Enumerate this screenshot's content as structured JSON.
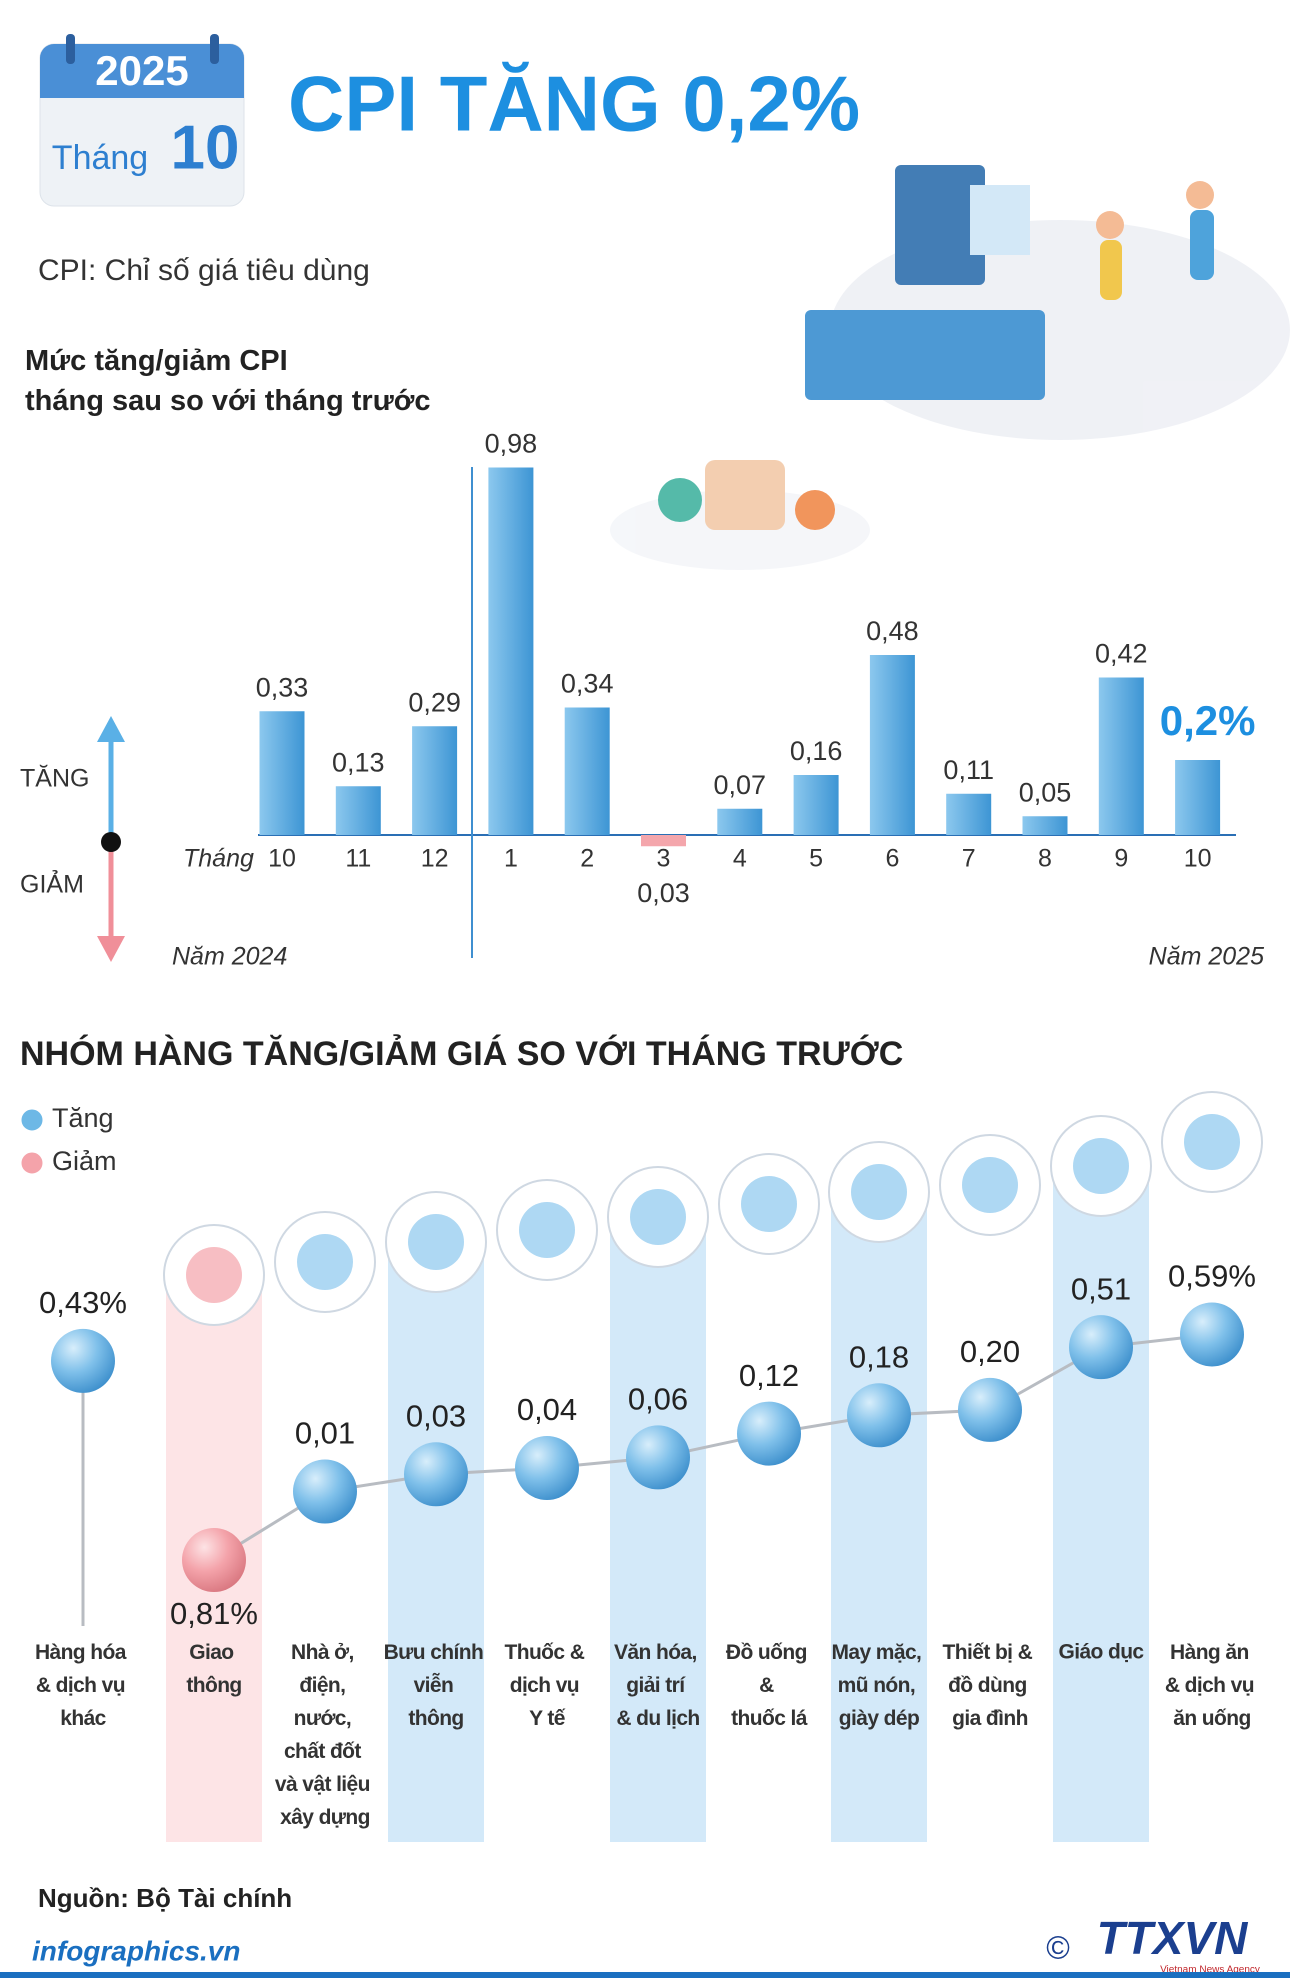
{
  "header": {
    "year": "2025",
    "month_label": "Tháng",
    "month": "10",
    "title": "CPI TĂNG 0,2%",
    "subtitle": "CPI: Chỉ số giá tiêu dùng"
  },
  "chart_data": [
    {
      "type": "bar",
      "title": "Mức tăng/giảm CPI\ntháng sau so với tháng trước",
      "x_label": "Tháng",
      "categories": [
        "10",
        "11",
        "12",
        "1",
        "2",
        "3",
        "4",
        "5",
        "6",
        "7",
        "8",
        "9",
        "10"
      ],
      "values": [
        0.33,
        0.13,
        0.29,
        0.98,
        0.34,
        -0.03,
        0.07,
        0.16,
        0.48,
        0.11,
        0.05,
        0.42,
        0.2
      ],
      "value_labels": [
        "0,33",
        "0,13",
        "0,29",
        "0,98",
        "0,34",
        "0,03",
        "0,07",
        "0,16",
        "0,48",
        "0,11",
        "0,05",
        "0,42",
        "0,2%"
      ],
      "ylim": [
        -0.1,
        1.0
      ],
      "up_label": "TĂNG",
      "down_label": "GIẢM",
      "period_labels": [
        "Năm 2024",
        "Năm 2025"
      ],
      "color": "#4fa6dd",
      "negative_color": "#f4a6ac"
    },
    {
      "type": "dot",
      "title": "NHÓM HÀNG TĂNG/GIẢM GIÁ SO VỚI THÁNG TRƯỚC",
      "legend": [
        {
          "name": "Tăng",
          "color": "#6db8e6"
        },
        {
          "name": "Giảm",
          "color": "#f4a3aa"
        }
      ],
      "categories": [
        "Hàng hóa\n& dịch vụ\nkhác",
        "Giao\nthông",
        "Nhà ở,\nđiện,\nnước,\nchất đốt\nvà vật liệu\nxây dựng",
        "Bưu chính\nviễn\nthông",
        "Thuốc &\ndịch vụ\nY tế",
        "Văn hóa,\ngiải trí\n& du lịch",
        "Đồ uống\n&\nthuốc lá",
        "May mặc,\nmũ nón,\ngiày dép",
        "Thiết bị &\nđồ dùng\ngia đình",
        "Giáo dục",
        "Hàng ăn\n& dịch vụ\năn uống"
      ],
      "values": [
        0.43,
        -0.81,
        0.01,
        0.03,
        0.04,
        0.06,
        0.12,
        0.18,
        0.2,
        0.51,
        0.59
      ],
      "value_labels": [
        "0,43%",
        "0,81%",
        "0,01",
        "0,03",
        "0,04",
        "0,06",
        "0,12",
        "0,18",
        "0,20",
        "0,51",
        "0,59%"
      ]
    }
  ],
  "footer": {
    "source": "Nguồn: Bộ Tài chính",
    "site": "infographics.vn",
    "copyright": "©",
    "logo": "TTXVN",
    "agency": "Vietnam News Agency"
  }
}
